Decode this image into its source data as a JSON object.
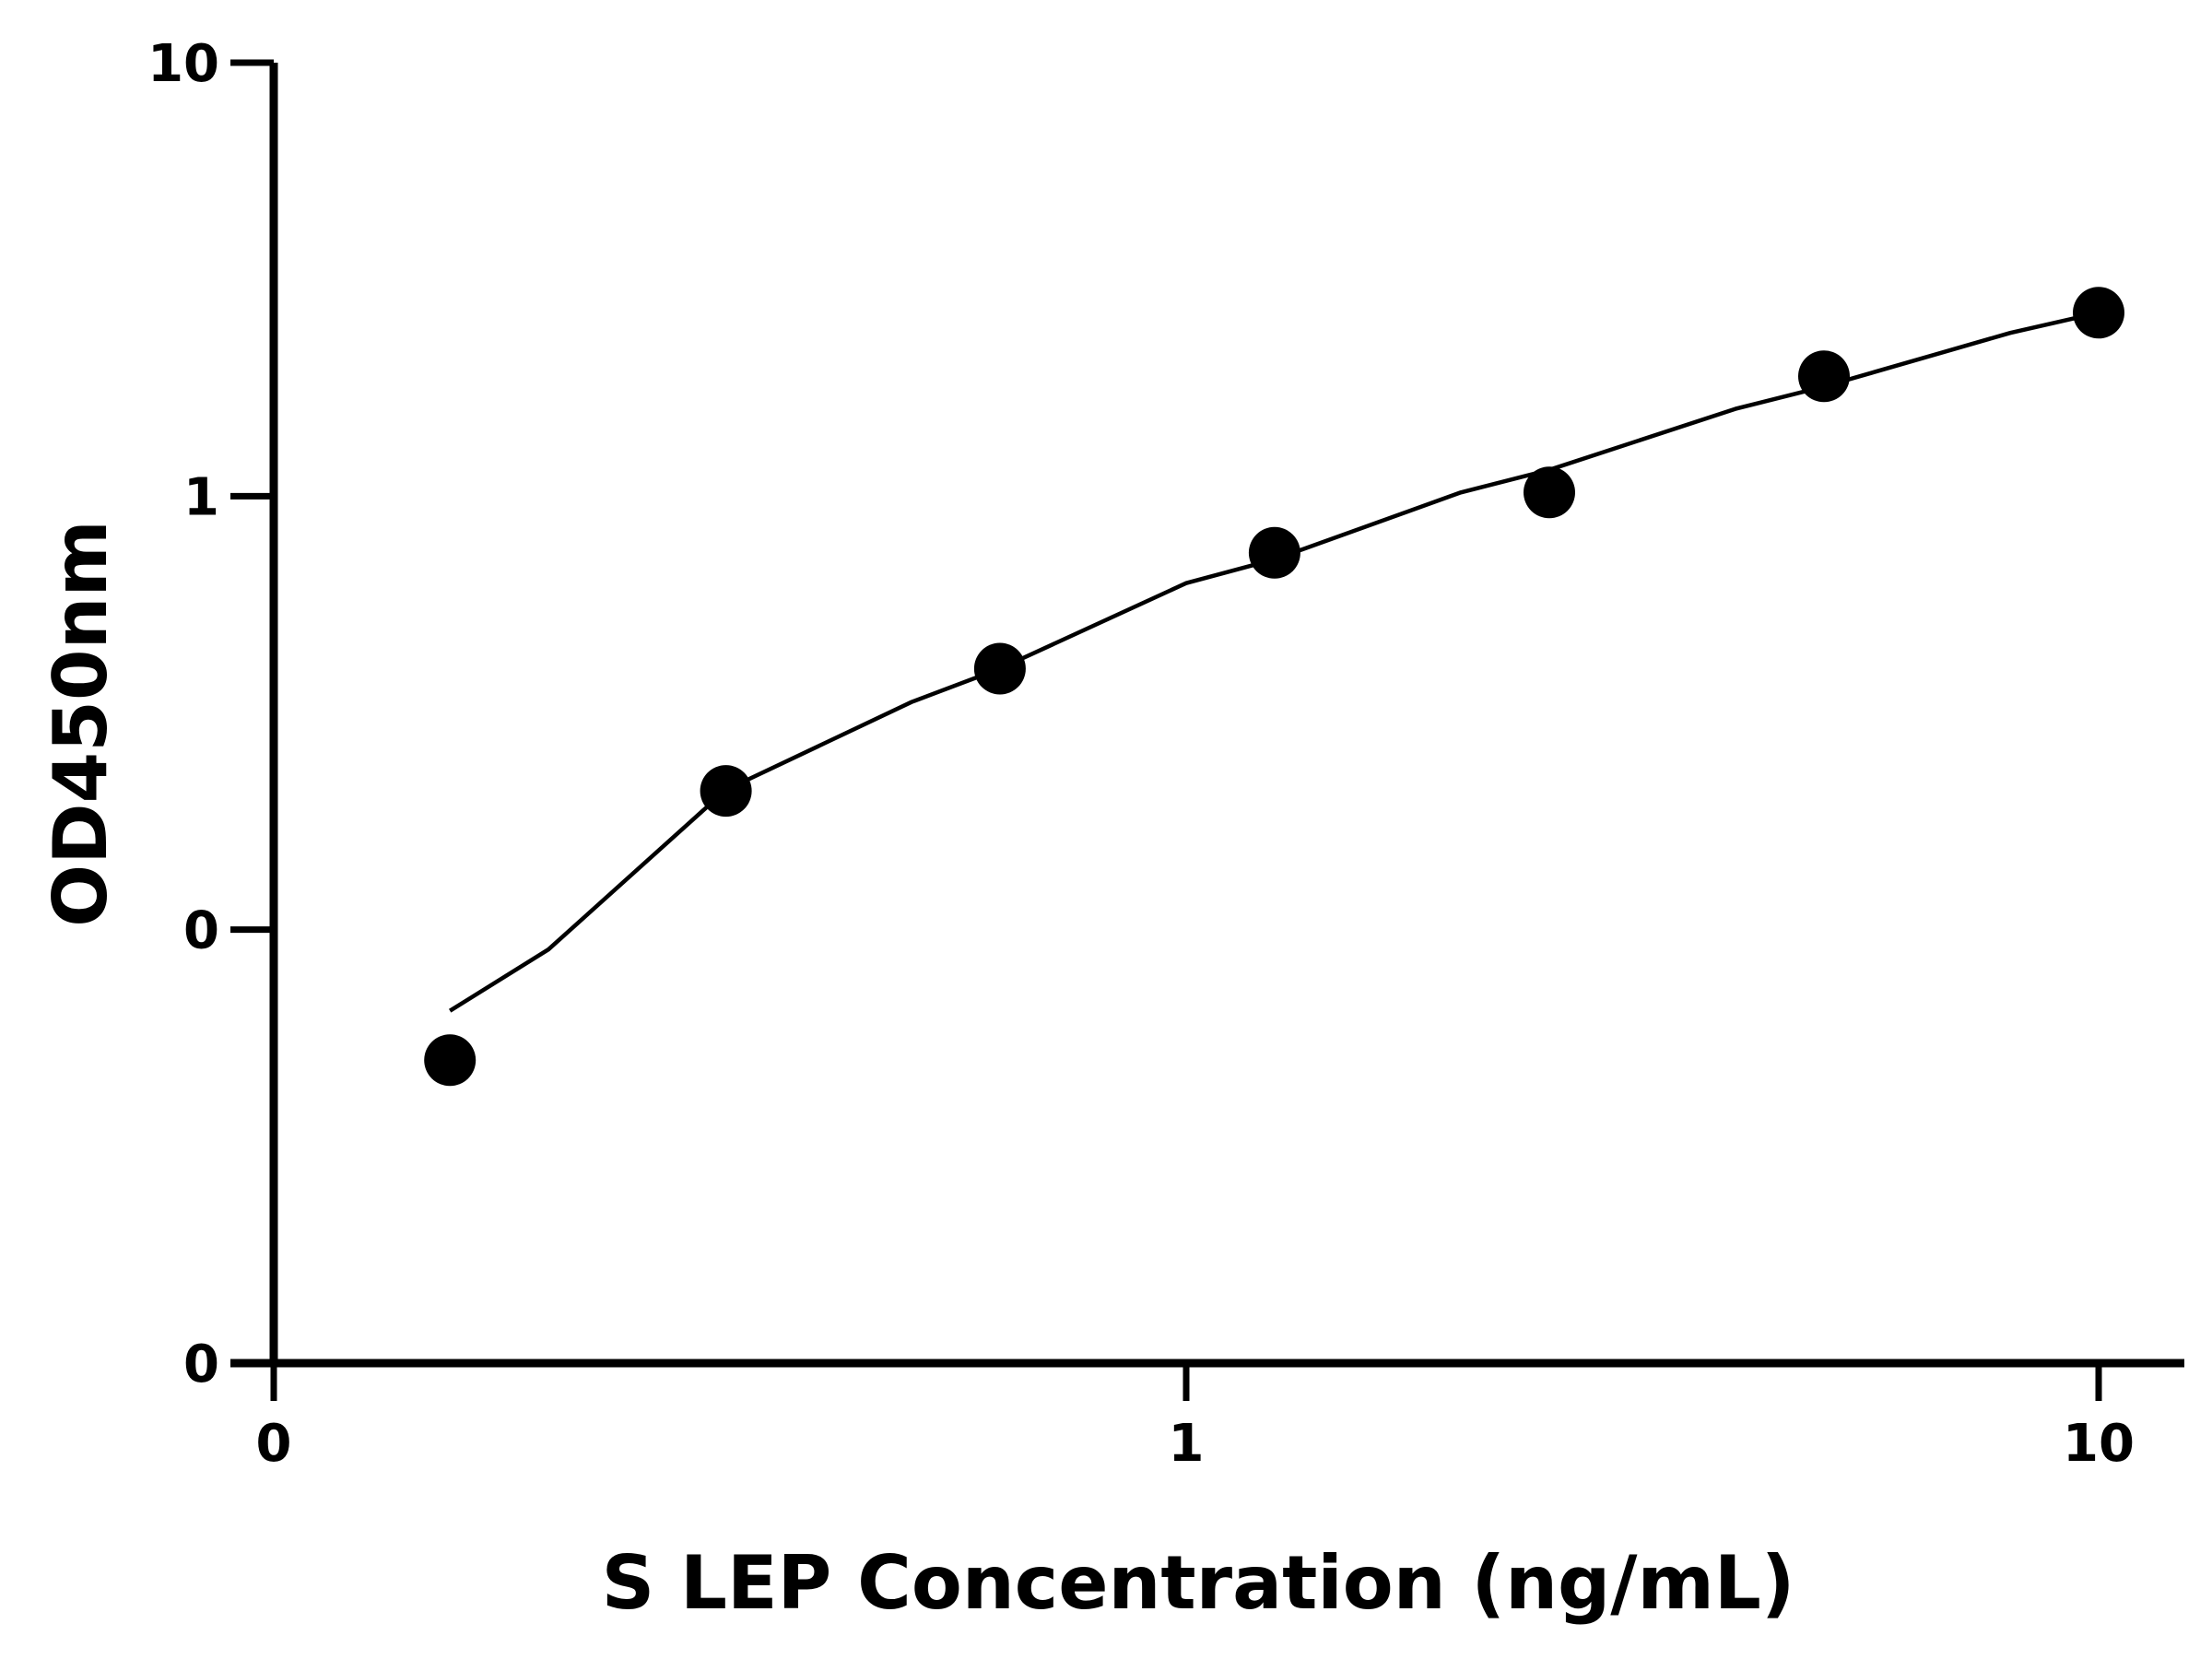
{
  "chart_data": {
    "type": "scatter",
    "title": "",
    "xlabel": "S LEP Concentration (ng/mL)",
    "ylabel": "OD450nm",
    "x_ticks": [
      {
        "value": 0.1,
        "label": "0"
      },
      {
        "value": 1,
        "label": "1"
      },
      {
        "value": 10,
        "label": "10"
      }
    ],
    "y_ticks": [
      {
        "value": 0.01,
        "label": "0"
      },
      {
        "value": 0.1,
        "label": "0"
      },
      {
        "value": 1,
        "label": "1"
      },
      {
        "value": 10,
        "label": "10"
      }
    ],
    "xlim": [
      0.1,
      11.8
    ],
    "ylim": [
      0.01,
      10
    ],
    "xscale": "log",
    "yscale": "log",
    "grid": false,
    "legend": "none",
    "series": [
      {
        "x": [
          0.156,
          0.313,
          0.625,
          1.25,
          2.5,
          5,
          10
        ],
        "y": [
          0.05,
          0.209,
          0.4,
          0.74,
          1.02,
          1.89,
          2.65
        ]
      }
    ],
    "fit": {
      "type": "power",
      "x": [
        0.156,
        0.2,
        0.313,
        0.5,
        0.625,
        1,
        1.25,
        2,
        2.5,
        4,
        5,
        8,
        10
      ],
      "y": [
        0.065,
        0.09,
        0.21,
        0.335,
        0.4,
        0.63,
        0.715,
        1.02,
        1.15,
        1.59,
        1.79,
        2.38,
        2.65
      ]
    },
    "colors": {
      "points": "#000000",
      "line": "#000000",
      "axis": "#000000"
    }
  }
}
